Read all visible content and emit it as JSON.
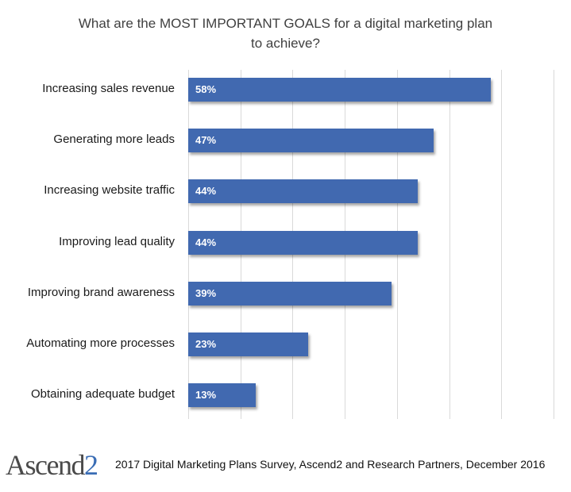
{
  "chart_data": {
    "type": "bar",
    "orientation": "horizontal",
    "title": "What are the MOST IMPORTANT GOALS for a digital marketing plan to achieve?",
    "title_lines": [
      "What are the MOST IMPORTANT GOALS for a digital marketing plan",
      "to achieve?"
    ],
    "categories": [
      "Increasing sales revenue",
      "Generating more leads",
      "Increasing website traffic",
      "Improving lead quality",
      "Improving brand awareness",
      "Automating more processes",
      "Obtaining adequate budget"
    ],
    "values": [
      58,
      47,
      44,
      44,
      39,
      23,
      13
    ],
    "value_labels": [
      "58%",
      "47%",
      "44%",
      "44%",
      "39%",
      "23%",
      "13%"
    ],
    "xlabel": "",
    "ylabel": "",
    "xlim": [
      0,
      70
    ],
    "grid": true,
    "grid_step": 10,
    "legend": null,
    "bar_color": "#4169b0"
  },
  "footer": {
    "logo_text": "Ascend",
    "logo_digit": "2",
    "source": "2017 Digital Marketing Plans Survey, Ascend2 and Research Partners, December 2016"
  }
}
